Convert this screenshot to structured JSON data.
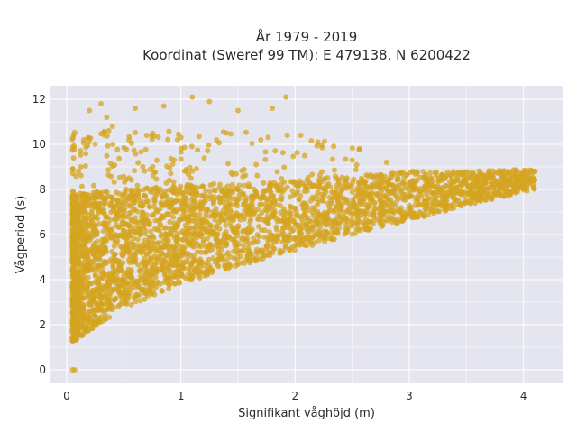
{
  "chart_data": {
    "type": "scatter",
    "title_lines": [
      "År 1979 - 2019",
      "Koordinat (Sweref 99 TM): E 479138, N 6200422"
    ],
    "xlabel": "Signifikant våghöjd (m)",
    "ylabel": "Vågperiod (s)",
    "xlim": [
      -0.15,
      4.35
    ],
    "ylim": [
      -0.6,
      12.6
    ],
    "x_ticks": [
      0,
      1,
      2,
      3,
      4
    ],
    "y_ticks": [
      0,
      2,
      4,
      6,
      8,
      10,
      12
    ],
    "grid": true,
    "legend": "none",
    "marker_color": "#D4A420",
    "background_color": "#E5E5EF",
    "point_cloud": {
      "core_band": [
        {
          "x": 0.05,
          "y_low": 1.2,
          "y_high": 7.8
        },
        {
          "x": 0.5,
          "y_low": 2.7,
          "y_high": 8.0
        },
        {
          "x": 1.0,
          "y_low": 3.8,
          "y_high": 8.2
        },
        {
          "x": 1.5,
          "y_low": 4.6,
          "y_high": 8.3
        },
        {
          "x": 2.0,
          "y_low": 5.3,
          "y_high": 8.4
        },
        {
          "x": 2.5,
          "y_low": 6.0,
          "y_high": 8.6
        },
        {
          "x": 3.0,
          "y_low": 6.6,
          "y_high": 8.8
        },
        {
          "x": 3.5,
          "y_low": 7.3,
          "y_high": 8.8
        },
        {
          "x": 4.1,
          "y_low": 8.0,
          "y_high": 8.9
        }
      ],
      "outliers": [
        {
          "x": 0.2,
          "y": 11.5
        },
        {
          "x": 0.3,
          "y": 11.8
        },
        {
          "x": 0.35,
          "y": 11.2
        },
        {
          "x": 0.6,
          "y": 11.6
        },
        {
          "x": 0.85,
          "y": 11.7
        },
        {
          "x": 1.1,
          "y": 12.1
        },
        {
          "x": 1.25,
          "y": 11.9
        },
        {
          "x": 1.5,
          "y": 11.5
        },
        {
          "x": 1.8,
          "y": 11.6
        },
        {
          "x": 1.92,
          "y": 12.1
        },
        {
          "x": 0.7,
          "y": 10.4
        },
        {
          "x": 1.0,
          "y": 10.3
        },
        {
          "x": 1.4,
          "y": 10.5
        },
        {
          "x": 1.7,
          "y": 10.2
        },
        {
          "x": 2.2,
          "y": 10.1
        },
        {
          "x": 0.05,
          "y": 0.0
        },
        {
          "x": 0.07,
          "y": 0.0
        },
        {
          "x": 3.95,
          "y": 8.5
        },
        {
          "x": 4.1,
          "y": 8.8
        },
        {
          "x": 3.7,
          "y": 8.6
        },
        {
          "x": 2.8,
          "y": 9.2
        },
        {
          "x": 2.5,
          "y": 9.3
        },
        {
          "x": 0.4,
          "y": 10.8
        },
        {
          "x": 0.15,
          "y": 10.2
        }
      ]
    }
  }
}
